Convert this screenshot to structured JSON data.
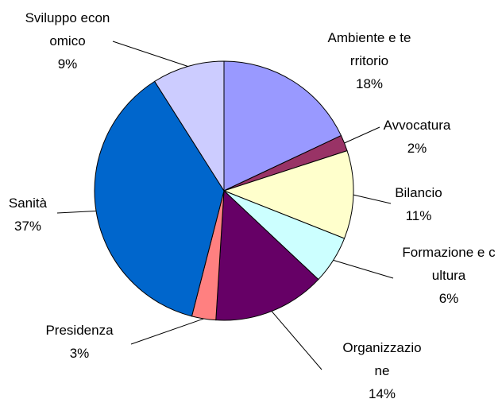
{
  "chart_data": {
    "type": "pie",
    "categories": [
      "Ambiente e territorio",
      "Avvocatura",
      "Bilancio",
      "Formazione e cultura",
      "Organizzazione",
      "Presidenza",
      "Sanità",
      "Sviluppo economico"
    ],
    "values": [
      18,
      2,
      11,
      6,
      14,
      3,
      37,
      9
    ],
    "value_labels": [
      "18%",
      "2%",
      "11%",
      "6%",
      "14%",
      "3%",
      "37%",
      "9%"
    ],
    "colors": [
      "#9999ff",
      "#993366",
      "#ffffcc",
      "#ccffff",
      "#660066",
      "#ff8080",
      "#0066cc",
      "#ccccff"
    ]
  }
}
